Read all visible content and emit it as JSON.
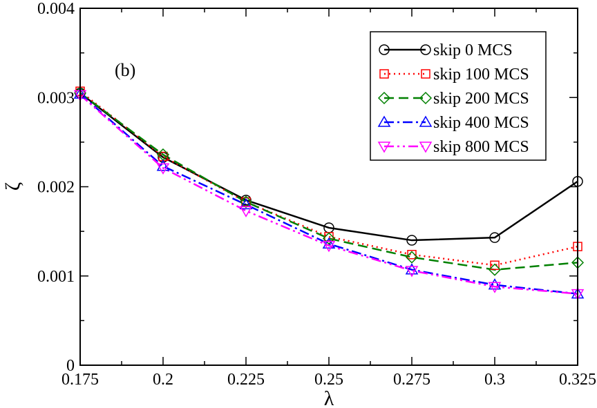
{
  "chart_data": {
    "type": "line",
    "title": "",
    "panel_label": "(b)",
    "xlabel": "λ",
    "ylabel": "ζ",
    "xlim": [
      0.175,
      0.325
    ],
    "ylim": [
      0,
      0.004
    ],
    "xticks": [
      0.175,
      0.2,
      0.225,
      0.25,
      0.275,
      0.3,
      0.325
    ],
    "xtick_labels": [
      "0.175",
      "0.2",
      "0.225",
      "0.25",
      "0.275",
      "0.3",
      "0.325"
    ],
    "yticks": [
      0,
      0.001,
      0.002,
      0.003,
      0.004
    ],
    "ytick_labels": [
      "0",
      "0.001",
      "0.002",
      "0.003",
      "0.004"
    ],
    "grid": false,
    "legend_position": "top-right",
    "x": [
      0.175,
      0.2,
      0.225,
      0.25,
      0.275,
      0.3,
      0.325
    ],
    "series": [
      {
        "name": "skip 0 MCS",
        "color": "#000000",
        "dash": "solid",
        "marker": "circle",
        "values": [
          0.00305,
          0.00233,
          0.00185,
          0.00154,
          0.0014,
          0.00143,
          0.00206
        ]
      },
      {
        "name": "skip 100 MCS",
        "color": "#ff0000",
        "dash": "dotted",
        "marker": "square",
        "values": [
          0.00307,
          0.00234,
          0.00183,
          0.00144,
          0.00124,
          0.00112,
          0.00133
        ]
      },
      {
        "name": "skip 200 MCS",
        "color": "#008000",
        "dash": "dashed",
        "marker": "diamond",
        "values": [
          0.00305,
          0.00236,
          0.00183,
          0.00142,
          0.00121,
          0.00107,
          0.00115
        ]
      },
      {
        "name": "skip 400 MCS",
        "color": "#0000ff",
        "dash": "dashdot",
        "marker": "triangle-up",
        "values": [
          0.00304,
          0.00223,
          0.0018,
          0.00136,
          0.00107,
          0.0009,
          0.0008
        ]
      },
      {
        "name": "skip 800 MCS",
        "color": "#ff00ff",
        "dash": "dashdotdot",
        "marker": "triangle-down",
        "values": [
          0.00303,
          0.00221,
          0.00173,
          0.00134,
          0.00106,
          0.00088,
          0.0008
        ]
      }
    ]
  }
}
